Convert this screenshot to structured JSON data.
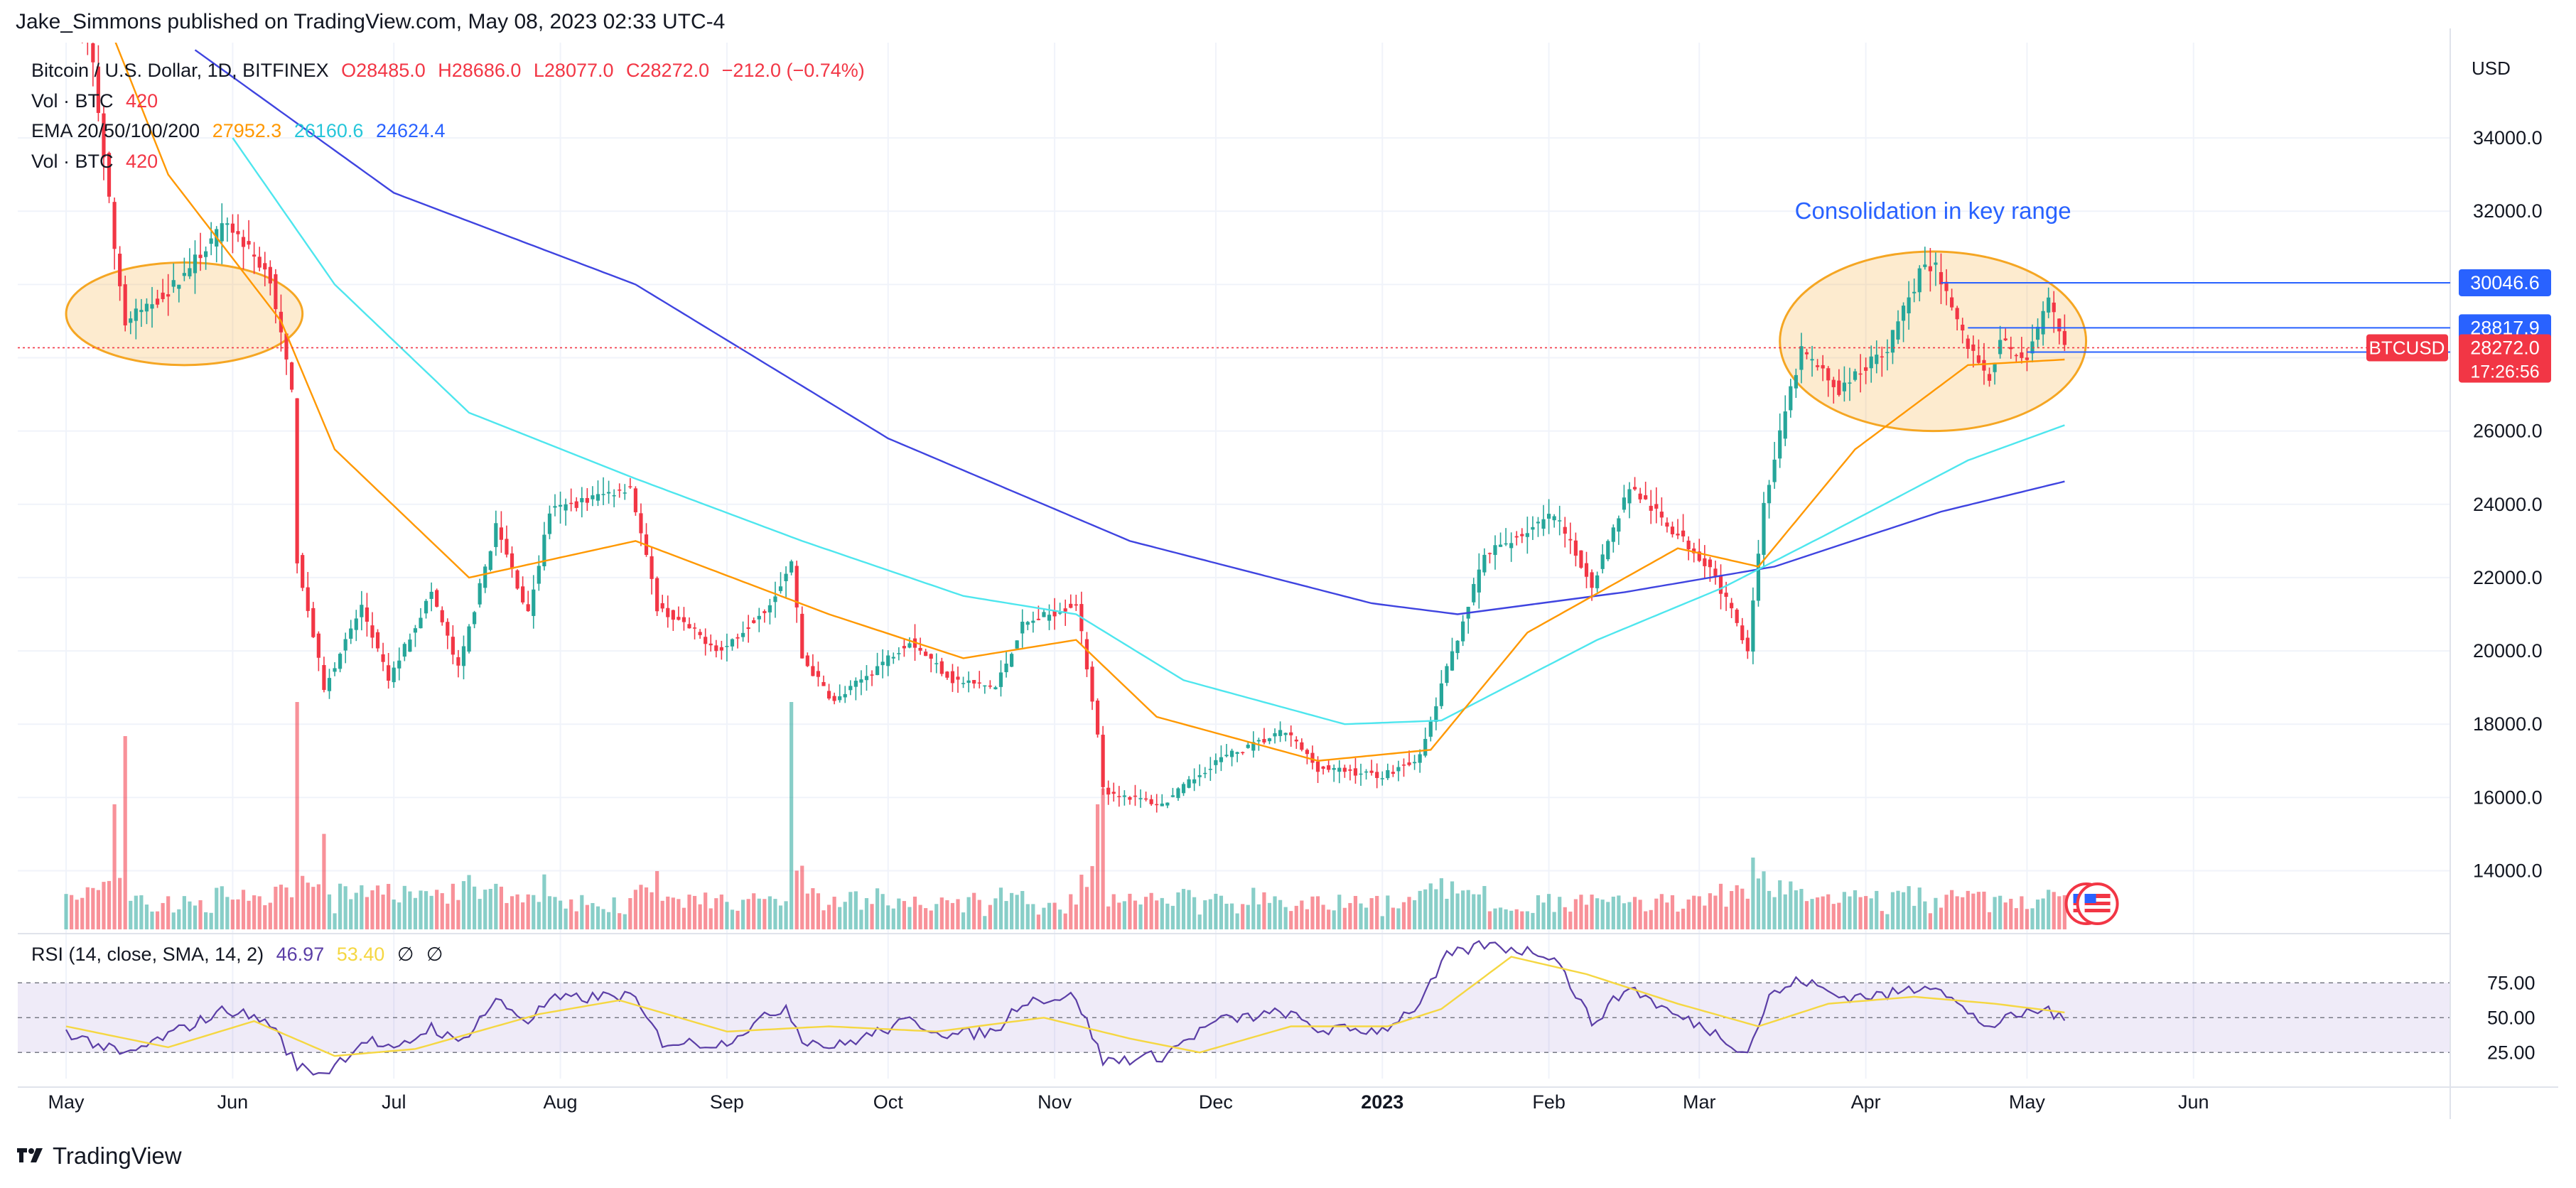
{
  "publisher": "Jake_Simmons published on TradingView.com, May 08, 2023 02:33 UTC-4",
  "footer_brand": "TradingView",
  "legend": {
    "symbol": "Bitcoin / U.S. Dollar, 1D, BITFINEX",
    "open": "O28485.0",
    "high": "H28686.0",
    "low": "L28077.0",
    "close": "C28272.0",
    "change": "−212.0 (−0.74%)",
    "vol_label": "Vol · BTC",
    "vol_value": "420",
    "ema_label": "EMA 20/50/100/200",
    "ema20": "27952.3",
    "ema50": "26160.6",
    "ema100": "24624.4",
    "vol2_label": "Vol · BTC",
    "vol2_value": "420"
  },
  "rsi_legend": {
    "label": "RSI (14, close, SMA, 14, 2)",
    "rsi": "46.97",
    "sma": "53.40",
    "na1": "∅",
    "na2": "∅"
  },
  "colors": {
    "up": "#26a69a",
    "down": "#f23645",
    "ema20": "#ff9800",
    "ema50": "#4ee6ee",
    "ema100": "#3f44e0",
    "rsi": "#5b3ea6",
    "rsi_sma": "#f5d742",
    "highlight": "#f5a623",
    "level": "#2962ff"
  },
  "chart_data": {
    "type": "candlestick",
    "currency": "USD",
    "y_range": [
      12400,
      36600
    ],
    "price_ticks": [
      "34000.0",
      "32000.0",
      "30000.0",
      "28000.0",
      "26000.0",
      "24000.0",
      "22000.0",
      "20000.0",
      "18000.0",
      "16000.0",
      "14000.0"
    ],
    "x_labels": [
      "May",
      "Jun",
      "Jul",
      "Aug",
      "Sep",
      "Oct",
      "Nov",
      "Dec",
      "2023",
      "Feb",
      "Mar",
      "Apr",
      "May",
      "Jun"
    ],
    "x_label_dates": [
      "2022-05-01",
      "2022-06-01",
      "2022-07-01",
      "2022-08-01",
      "2022-09-01",
      "2022-10-01",
      "2022-11-01",
      "2022-12-01",
      "2023-01-01",
      "2023-02-01",
      "2023-03-01",
      "2023-04-01",
      "2023-05-01",
      "2023-06-01"
    ],
    "price_anchors": [
      [
        "2022-05-01",
        38500
      ],
      [
        "2022-05-06",
        36000
      ],
      [
        "2022-05-10",
        31000
      ],
      [
        "2022-05-12",
        29000
      ],
      [
        "2022-05-20",
        29800
      ],
      [
        "2022-05-31",
        31700
      ],
      [
        "2022-06-08",
        30200
      ],
      [
        "2022-06-12",
        27000
      ],
      [
        "2022-06-13",
        22500
      ],
      [
        "2022-06-18",
        19000
      ],
      [
        "2022-06-25",
        21200
      ],
      [
        "2022-06-30",
        19200
      ],
      [
        "2022-07-08",
        21600
      ],
      [
        "2022-07-13",
        19500
      ],
      [
        "2022-07-20",
        23400
      ],
      [
        "2022-07-26",
        21000
      ],
      [
        "2022-07-30",
        23800
      ],
      [
        "2022-08-14",
        24500
      ],
      [
        "2022-08-19",
        21200
      ],
      [
        "2022-08-31",
        20000
      ],
      [
        "2022-09-09",
        21300
      ],
      [
        "2022-09-13",
        22400
      ],
      [
        "2022-09-15",
        19800
      ],
      [
        "2022-09-21",
        18600
      ],
      [
        "2022-10-05",
        20300
      ],
      [
        "2022-10-13",
        19200
      ],
      [
        "2022-10-21",
        19000
      ],
      [
        "2022-10-26",
        20700
      ],
      [
        "2022-11-05",
        21300
      ],
      [
        "2022-11-09",
        17800
      ],
      [
        "2022-11-10",
        16200
      ],
      [
        "2022-11-21",
        15800
      ],
      [
        "2022-12-01",
        17000
      ],
      [
        "2022-12-14",
        17800
      ],
      [
        "2022-12-20",
        16800
      ],
      [
        "2023-01-01",
        16600
      ],
      [
        "2023-01-08",
        17100
      ],
      [
        "2023-01-13",
        19500
      ],
      [
        "2023-01-20",
        22600
      ],
      [
        "2023-02-02",
        23700
      ],
      [
        "2023-02-09",
        21800
      ],
      [
        "2023-02-16",
        24500
      ],
      [
        "2023-02-24",
        23300
      ],
      [
        "2023-03-03",
        22300
      ],
      [
        "2023-03-10",
        20100
      ],
      [
        "2023-03-13",
        24000
      ],
      [
        "2023-03-17",
        26500
      ],
      [
        "2023-03-20",
        28200
      ],
      [
        "2023-03-27",
        27100
      ],
      [
        "2023-04-05",
        28300
      ],
      [
        "2023-04-11",
        30300
      ],
      [
        "2023-04-14",
        30500
      ],
      [
        "2023-04-20",
        28300
      ],
      [
        "2023-04-24",
        27500
      ],
      [
        "2023-04-26",
        28400
      ],
      [
        "2023-05-01",
        28000
      ],
      [
        "2023-05-05",
        29500
      ],
      [
        "2023-05-08",
        28272
      ]
    ],
    "ema20_anchors": [
      [
        "2022-05-01",
        40000
      ],
      [
        "2022-05-20",
        33000
      ],
      [
        "2022-06-10",
        29000
      ],
      [
        "2022-06-20",
        25500
      ],
      [
        "2022-07-15",
        22000
      ],
      [
        "2022-08-15",
        23000
      ],
      [
        "2022-09-20",
        21000
      ],
      [
        "2022-10-15",
        19800
      ],
      [
        "2022-11-05",
        20300
      ],
      [
        "2022-11-20",
        18200
      ],
      [
        "2022-12-20",
        17000
      ],
      [
        "2023-01-10",
        17300
      ],
      [
        "2023-01-28",
        20500
      ],
      [
        "2023-02-25",
        22800
      ],
      [
        "2023-03-12",
        22300
      ],
      [
        "2023-03-30",
        25500
      ],
      [
        "2023-04-20",
        27800
      ],
      [
        "2023-05-08",
        27952
      ]
    ],
    "ema50_anchors": [
      [
        "2022-06-01",
        34000
      ],
      [
        "2022-06-20",
        30000
      ],
      [
        "2022-07-15",
        26500
      ],
      [
        "2022-08-15",
        24700
      ],
      [
        "2022-09-15",
        23000
      ],
      [
        "2022-10-15",
        21500
      ],
      [
        "2022-11-05",
        21000
      ],
      [
        "2022-11-25",
        19200
      ],
      [
        "2022-12-25",
        18000
      ],
      [
        "2023-01-12",
        18100
      ],
      [
        "2023-02-10",
        20300
      ],
      [
        "2023-03-05",
        21700
      ],
      [
        "2023-03-25",
        23200
      ],
      [
        "2023-04-20",
        25200
      ],
      [
        "2023-05-08",
        26160
      ]
    ],
    "ema100_anchors": [
      [
        "2022-05-25",
        36400
      ],
      [
        "2022-07-01",
        32500
      ],
      [
        "2022-08-15",
        30000
      ],
      [
        "2022-10-01",
        25800
      ],
      [
        "2022-11-15",
        23000
      ],
      [
        "2022-12-30",
        21300
      ],
      [
        "2023-01-15",
        21000
      ],
      [
        "2023-02-15",
        21600
      ],
      [
        "2023-03-15",
        22300
      ],
      [
        "2023-04-15",
        23800
      ],
      [
        "2023-05-08",
        24624
      ]
    ],
    "rsi_axis": [
      "75.00",
      "50.00",
      "25.00"
    ],
    "rsi_range": [
      15,
      95
    ],
    "rsi_anchors": [
      [
        "2022-05-01",
        42
      ],
      [
        "2022-05-12",
        28
      ],
      [
        "2022-05-20",
        40
      ],
      [
        "2022-05-31",
        55
      ],
      [
        "2022-06-08",
        47
      ],
      [
        "2022-06-13",
        22
      ],
      [
        "2022-06-18",
        18
      ],
      [
        "2022-06-26",
        38
      ],
      [
        "2022-07-01",
        30
      ],
      [
        "2022-07-08",
        45
      ],
      [
        "2022-07-13",
        35
      ],
      [
        "2022-07-20",
        60
      ],
      [
        "2022-07-26",
        48
      ],
      [
        "2022-07-30",
        60
      ],
      [
        "2022-08-14",
        63
      ],
      [
        "2022-08-20",
        36
      ],
      [
        "2022-08-31",
        35
      ],
      [
        "2022-09-12",
        57
      ],
      [
        "2022-09-15",
        38
      ],
      [
        "2022-09-21",
        33
      ],
      [
        "2022-10-05",
        48
      ],
      [
        "2022-10-13",
        40
      ],
      [
        "2022-10-21",
        42
      ],
      [
        "2022-10-26",
        60
      ],
      [
        "2022-11-05",
        62
      ],
      [
        "2022-11-10",
        25
      ],
      [
        "2022-11-21",
        28
      ],
      [
        "2022-12-01",
        48
      ],
      [
        "2022-12-14",
        53
      ],
      [
        "2022-12-20",
        43
      ],
      [
        "2023-01-01",
        43
      ],
      [
        "2023-01-08",
        58
      ],
      [
        "2023-01-13",
        85
      ],
      [
        "2023-01-20",
        92
      ],
      [
        "2023-02-02",
        86
      ],
      [
        "2023-02-09",
        47
      ],
      [
        "2023-02-16",
        68
      ],
      [
        "2023-02-24",
        52
      ],
      [
        "2023-03-03",
        43
      ],
      [
        "2023-03-10",
        30
      ],
      [
        "2023-03-14",
        62
      ],
      [
        "2023-03-20",
        72
      ],
      [
        "2023-03-27",
        62
      ],
      [
        "2023-04-05",
        63
      ],
      [
        "2023-04-14",
        70
      ],
      [
        "2023-04-20",
        52
      ],
      [
        "2023-04-24",
        45
      ],
      [
        "2023-04-30",
        52
      ],
      [
        "2023-05-05",
        55
      ],
      [
        "2023-05-08",
        47
      ]
    ],
    "rsi_sma_anchors": [
      [
        "2022-05-01",
        45
      ],
      [
        "2022-05-20",
        33
      ],
      [
        "2022-06-05",
        48
      ],
      [
        "2022-06-20",
        28
      ],
      [
        "2022-07-05",
        32
      ],
      [
        "2022-07-28",
        52
      ],
      [
        "2022-08-12",
        60
      ],
      [
        "2022-09-01",
        42
      ],
      [
        "2022-09-20",
        45
      ],
      [
        "2022-10-10",
        42
      ],
      [
        "2022-10-30",
        50
      ],
      [
        "2022-11-15",
        38
      ],
      [
        "2022-11-28",
        30
      ],
      [
        "2022-12-15",
        45
      ],
      [
        "2023-01-02",
        45
      ],
      [
        "2023-01-12",
        55
      ],
      [
        "2023-01-25",
        85
      ],
      [
        "2023-02-08",
        75
      ],
      [
        "2023-02-25",
        58
      ],
      [
        "2023-03-12",
        45
      ],
      [
        "2023-03-25",
        58
      ],
      [
        "2023-04-10",
        62
      ],
      [
        "2023-04-25",
        58
      ],
      [
        "2023-05-08",
        53
      ]
    ],
    "volume_spikes": [
      [
        "2022-05-10",
        0.55
      ],
      [
        "2022-05-12",
        0.85
      ],
      [
        "2022-06-13",
        1.0
      ],
      [
        "2022-06-18",
        0.42
      ],
      [
        "2022-09-13",
        1.0
      ],
      [
        "2022-11-09",
        0.55
      ],
      [
        "2022-11-10",
        0.62
      ]
    ],
    "volume_scale_max": 160,
    "annotation": {
      "text": "Consolidation in key range",
      "period": [
        "2023-03-16",
        "2023-05-12"
      ],
      "price_range": [
        26000,
        30900
      ]
    },
    "highlight_box": {
      "period": [
        "2022-05-01",
        "2022-06-14"
      ],
      "price_range": [
        27800,
        30600
      ]
    },
    "levels": [
      {
        "label": "30046.6",
        "value": 30046.6,
        "from": "2023-04-15"
      },
      {
        "label": "28817.9",
        "value": 28817.9,
        "from": "2023-04-20"
      },
      {
        "label": "28155.3",
        "value": 28155.3,
        "from": "2023-05-01"
      }
    ],
    "last_price": {
      "symbol": "BTCUSD",
      "label": "28272.0",
      "value": 28272.0,
      "countdown": "17:26:56"
    },
    "usd_label": "USD"
  }
}
